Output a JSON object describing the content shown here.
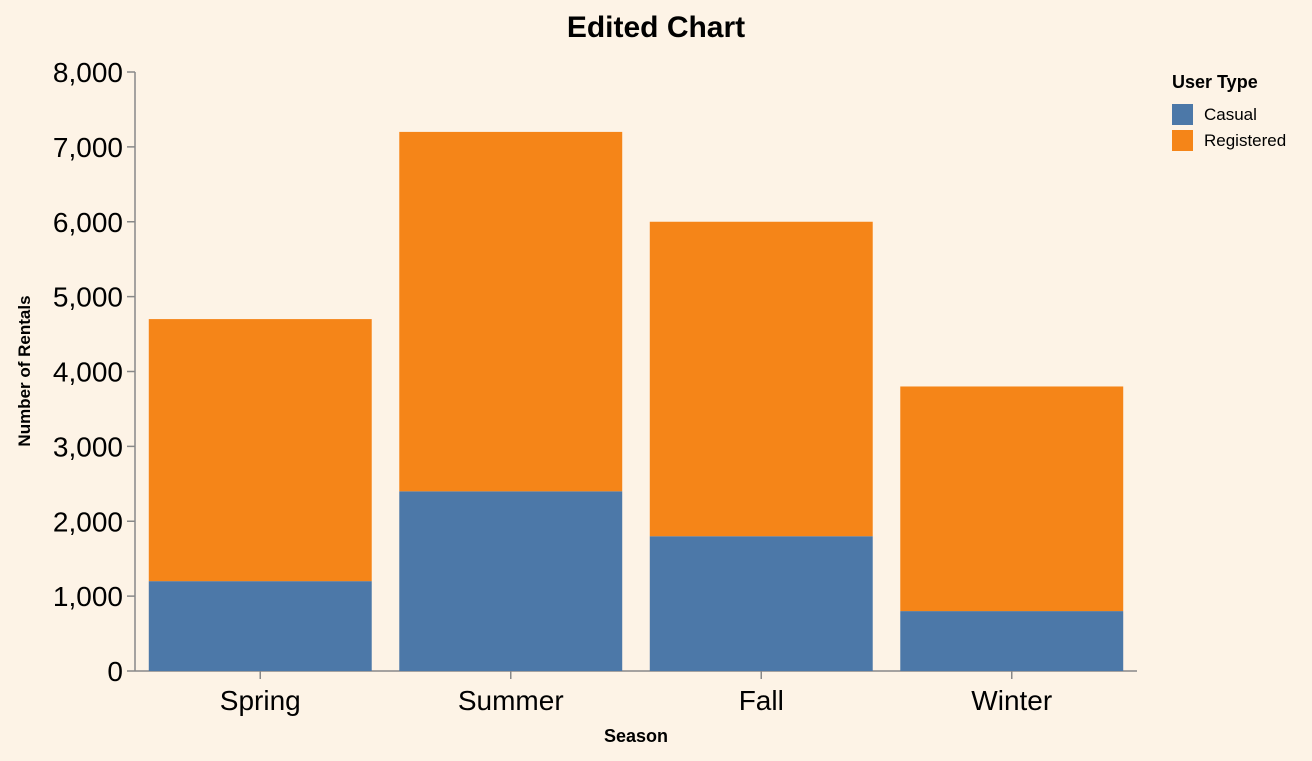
{
  "chart_data": {
    "type": "bar",
    "stacked": true,
    "title": "Edited Chart",
    "xlabel": "Season",
    "ylabel": "Number of Rentals",
    "categories": [
      "Spring",
      "Summer",
      "Fall",
      "Winter"
    ],
    "series": [
      {
        "name": "Casual",
        "values": [
          1200,
          2400,
          1800,
          800
        ],
        "color": "#4c78a8"
      },
      {
        "name": "Registered",
        "values": [
          3500,
          4800,
          4200,
          3000
        ],
        "color": "#f58518"
      }
    ],
    "ylim": [
      0,
      8000
    ],
    "yticks": [
      "0",
      "1,000",
      "2,000",
      "3,000",
      "4,000",
      "5,000",
      "6,000",
      "7,000",
      "8,000"
    ],
    "ytick_values": [
      0,
      1000,
      2000,
      3000,
      4000,
      5000,
      6000,
      7000,
      8000
    ],
    "grid": false,
    "legend": {
      "title": "User Type",
      "position": "top-right"
    },
    "colors": {
      "background": "#fdf3e6",
      "axis": "#888888",
      "text": "#000000"
    }
  }
}
